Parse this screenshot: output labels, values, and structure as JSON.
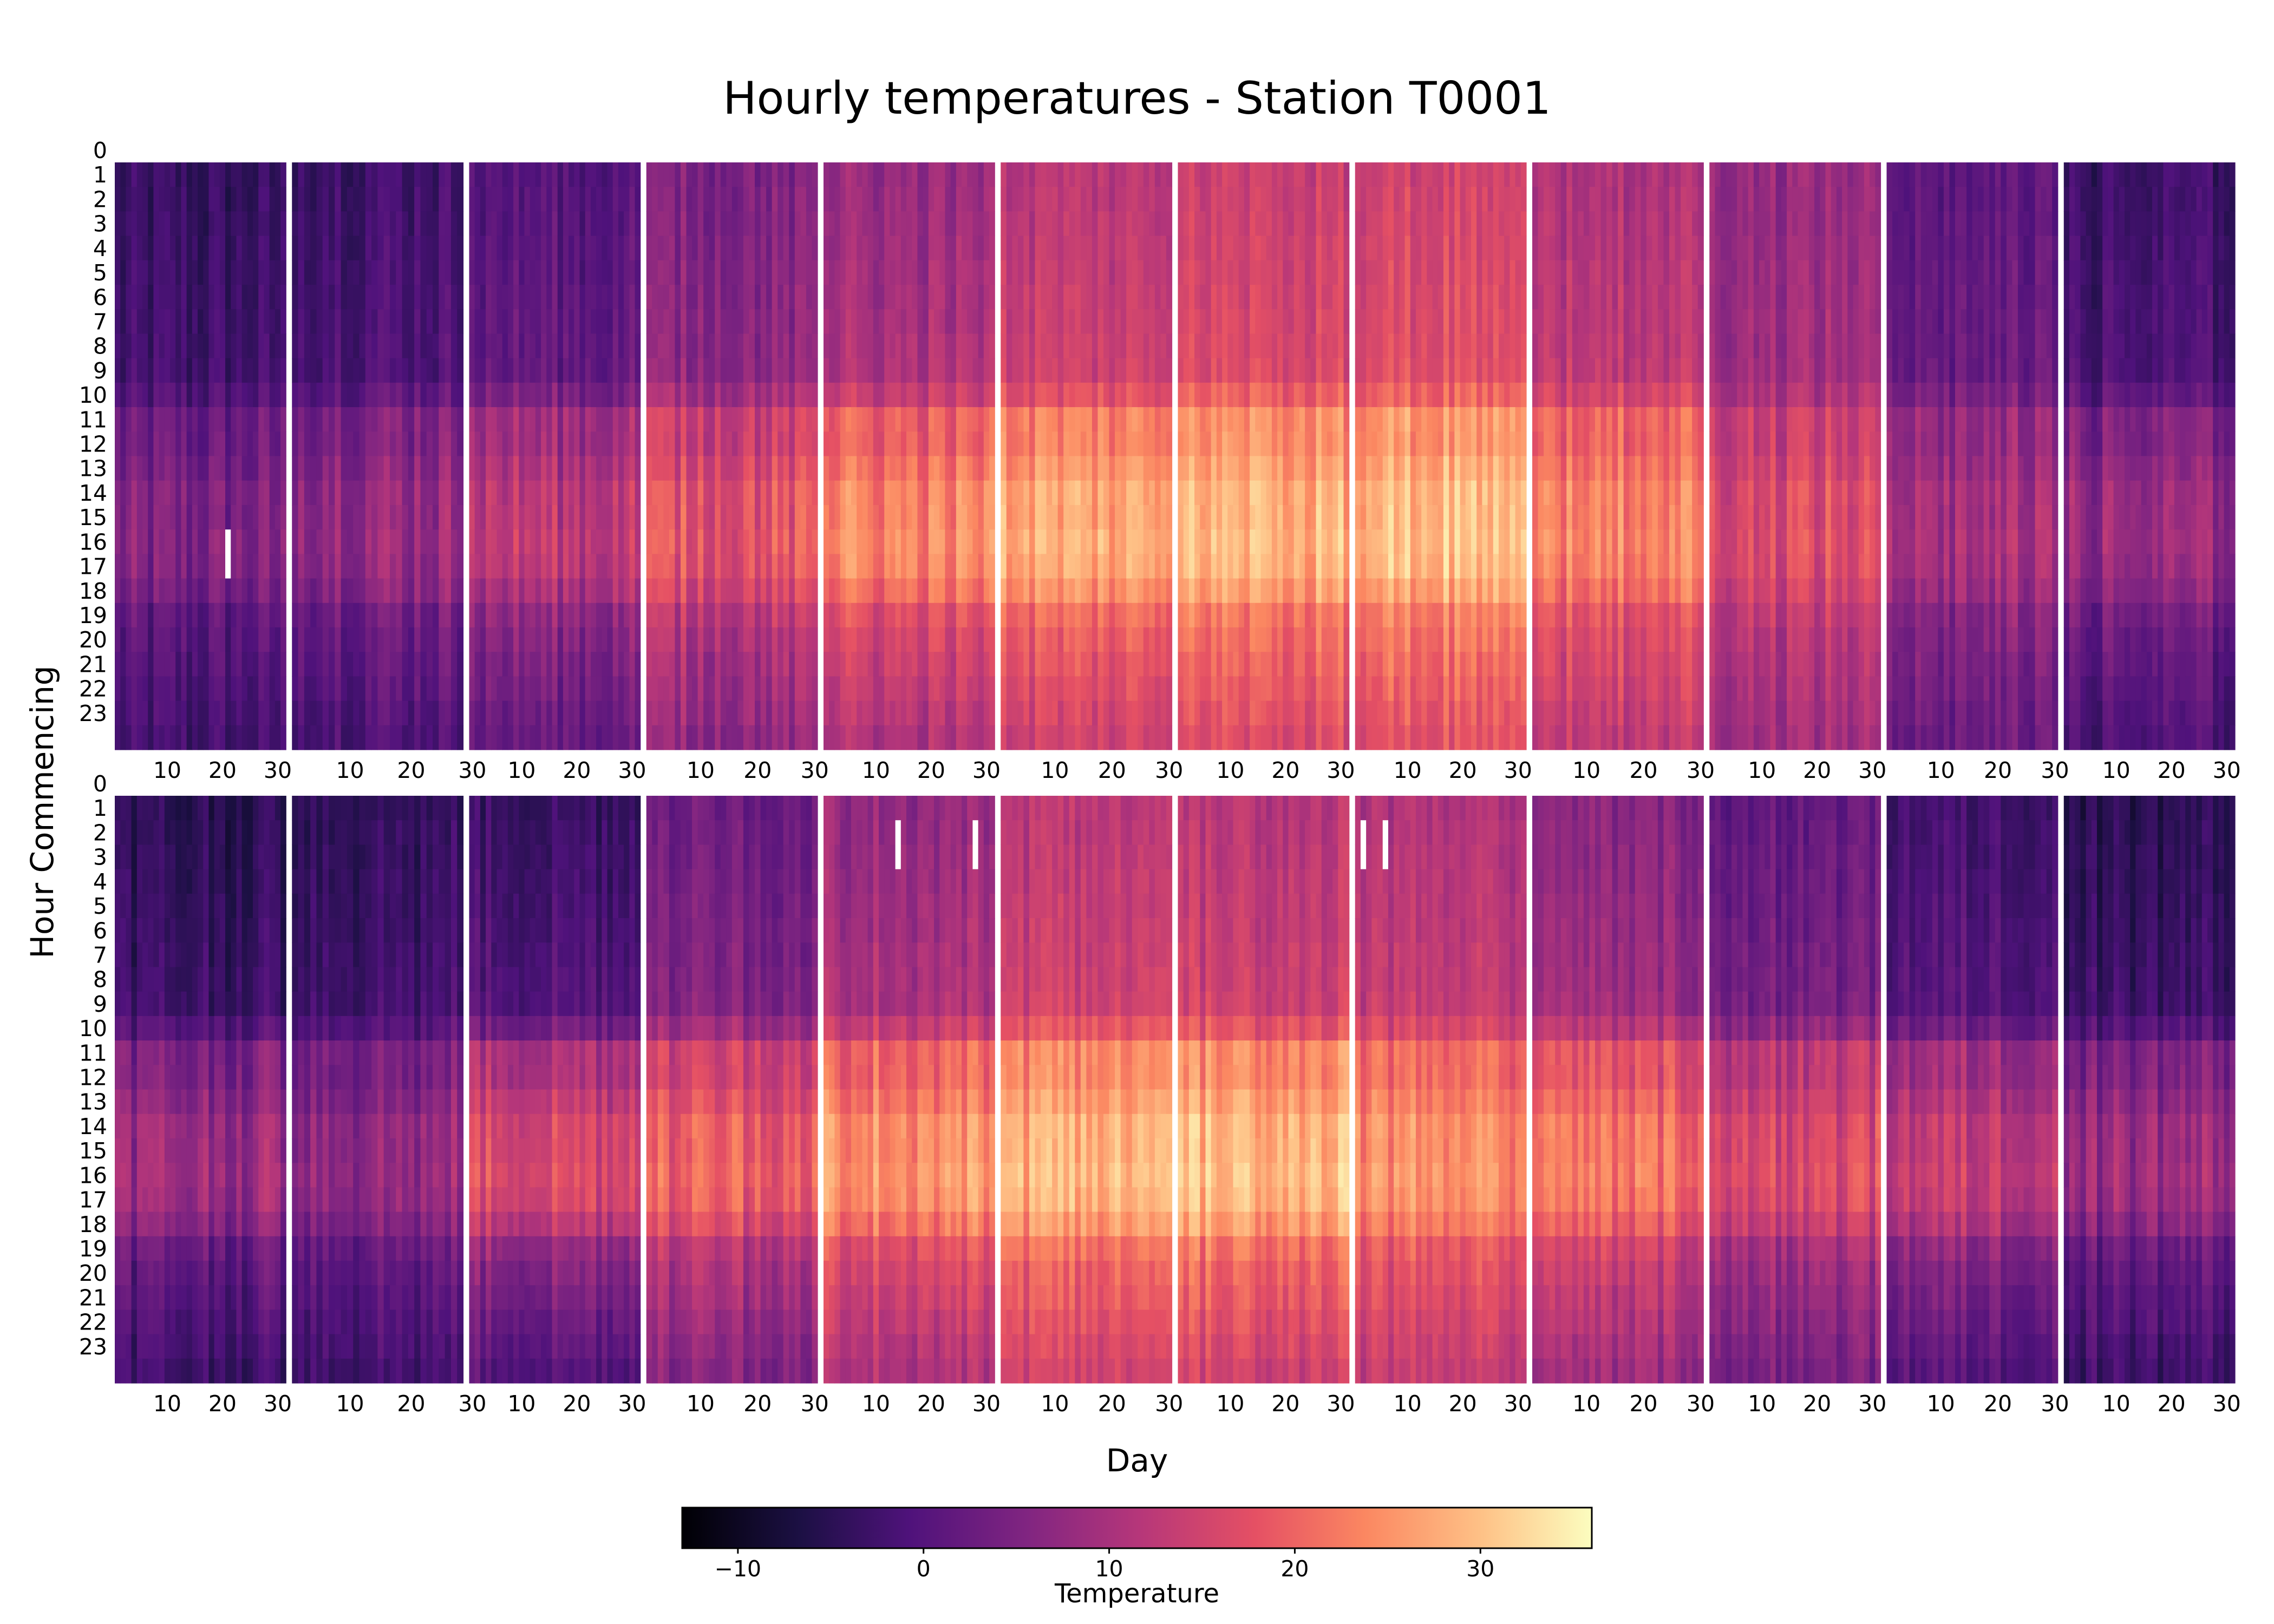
{
  "chart_data": {
    "type": "heatmap",
    "title": "Hourly temperatures - Station T0001",
    "xlabel": "Day",
    "ylabel": "Hour Commencing",
    "hours": [
      "0",
      "1",
      "2",
      "3",
      "4",
      "5",
      "6",
      "7",
      "8",
      "9",
      "10",
      "11",
      "12",
      "13",
      "14",
      "15",
      "16",
      "17",
      "18",
      "19",
      "20",
      "21",
      "22",
      "23"
    ],
    "day_ticks": [
      "10",
      "20",
      "30"
    ],
    "colorbar": {
      "label": "Temperature",
      "min": -13,
      "max": 36,
      "ticks": [
        {
          "value": -10,
          "label": "−10"
        },
        {
          "value": 0,
          "label": "0"
        },
        {
          "value": 10,
          "label": "10"
        },
        {
          "value": 20,
          "label": "20"
        },
        {
          "value": 30,
          "label": "30"
        }
      ],
      "colormap": "magma"
    },
    "rows": [
      {
        "months": [
          {
            "days": 31,
            "night": -4,
            "day": 5,
            "missing": [
              {
                "day": 21,
                "from_hour": 15,
                "to_hour": 16
              }
            ]
          },
          {
            "days": 28,
            "night": -2,
            "day": 9,
            "missing": []
          },
          {
            "days": 31,
            "night": 0,
            "day": 13,
            "missing": []
          },
          {
            "days": 30,
            "night": 5,
            "day": 18,
            "missing": []
          },
          {
            "days": 31,
            "night": 8,
            "day": 24,
            "missing": []
          },
          {
            "days": 30,
            "night": 12,
            "day": 28,
            "missing": []
          },
          {
            "days": 31,
            "night": 14,
            "day": 29,
            "missing": []
          },
          {
            "days": 31,
            "night": 15,
            "day": 30,
            "missing": []
          },
          {
            "days": 30,
            "night": 11,
            "day": 24,
            "missing": []
          },
          {
            "days": 31,
            "night": 8,
            "day": 17,
            "missing": []
          },
          {
            "days": 30,
            "night": 1,
            "day": 10,
            "missing": []
          },
          {
            "days": 31,
            "night": -3,
            "day": 8,
            "missing": []
          }
        ]
      },
      {
        "months": [
          {
            "days": 31,
            "night": -5,
            "day": 9,
            "missing": []
          },
          {
            "days": 28,
            "night": -4,
            "day": 8,
            "missing": []
          },
          {
            "days": 31,
            "night": -3,
            "day": 17,
            "missing": []
          },
          {
            "days": 30,
            "night": 3,
            "day": 20,
            "missing": []
          },
          {
            "days": 31,
            "night": 8,
            "day": 26,
            "missing": [
              {
                "day": 14,
                "from_hour": 1,
                "to_hour": 2
              },
              {
                "day": 28,
                "from_hour": 1,
                "to_hour": 2
              }
            ]
          },
          {
            "days": 30,
            "night": 12,
            "day": 29,
            "missing": []
          },
          {
            "days": 31,
            "night": 12,
            "day": 30,
            "missing": []
          },
          {
            "days": 31,
            "night": 11,
            "day": 25,
            "missing": [
              {
                "day": 2,
                "from_hour": 1,
                "to_hour": 2
              },
              {
                "day": 6,
                "from_hour": 1,
                "to_hour": 2
              }
            ]
          },
          {
            "days": 30,
            "night": 6,
            "day": 22,
            "missing": []
          },
          {
            "days": 31,
            "night": 2,
            "day": 17,
            "missing": []
          },
          {
            "days": 30,
            "night": -2,
            "day": 14,
            "missing": []
          },
          {
            "days": 31,
            "night": -5,
            "day": 9,
            "missing": []
          }
        ]
      }
    ]
  }
}
